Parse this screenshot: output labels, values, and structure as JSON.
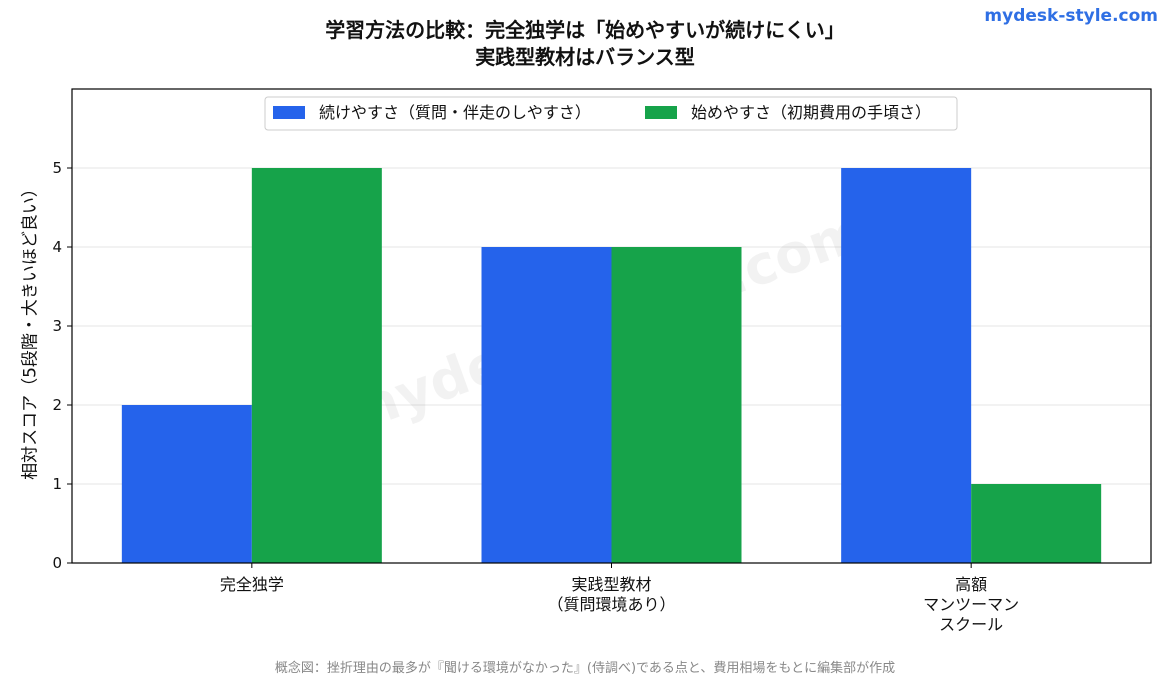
{
  "brand": "mydesk-style.com",
  "watermark": "mydesk-style.com",
  "footnote": "概念図：挫折理由の最多が『聞ける環境がなかった』(侍調べ)である点と、費用相場をもとに編集部が作成",
  "chart_data": {
    "type": "bar",
    "title_line1": "学習方法の比較：完全独学は「始めやすいが続けにくい」",
    "title_line2": "実践型教材はバランス型",
    "xlabel": "",
    "ylabel": "相対スコア（5段階・大きいほど良い）",
    "categories": [
      [
        "完全独学"
      ],
      [
        "実践型教材",
        "（質問環境あり）"
      ],
      [
        "高額",
        "マンツーマン",
        "スクール"
      ]
    ],
    "series": [
      {
        "name": "続けやすさ（質問・伴走のしやすさ）",
        "color": "#2563eb",
        "values": [
          2,
          4,
          5
        ]
      },
      {
        "name": "始めやすさ（初期費用の手頃さ）",
        "color": "#16a34a",
        "values": [
          5,
          4,
          1
        ]
      }
    ],
    "ylim": [
      0,
      6
    ],
    "yticks": [
      0,
      1,
      2,
      3,
      4,
      5
    ],
    "grid": true,
    "legend_position": "top-center"
  }
}
